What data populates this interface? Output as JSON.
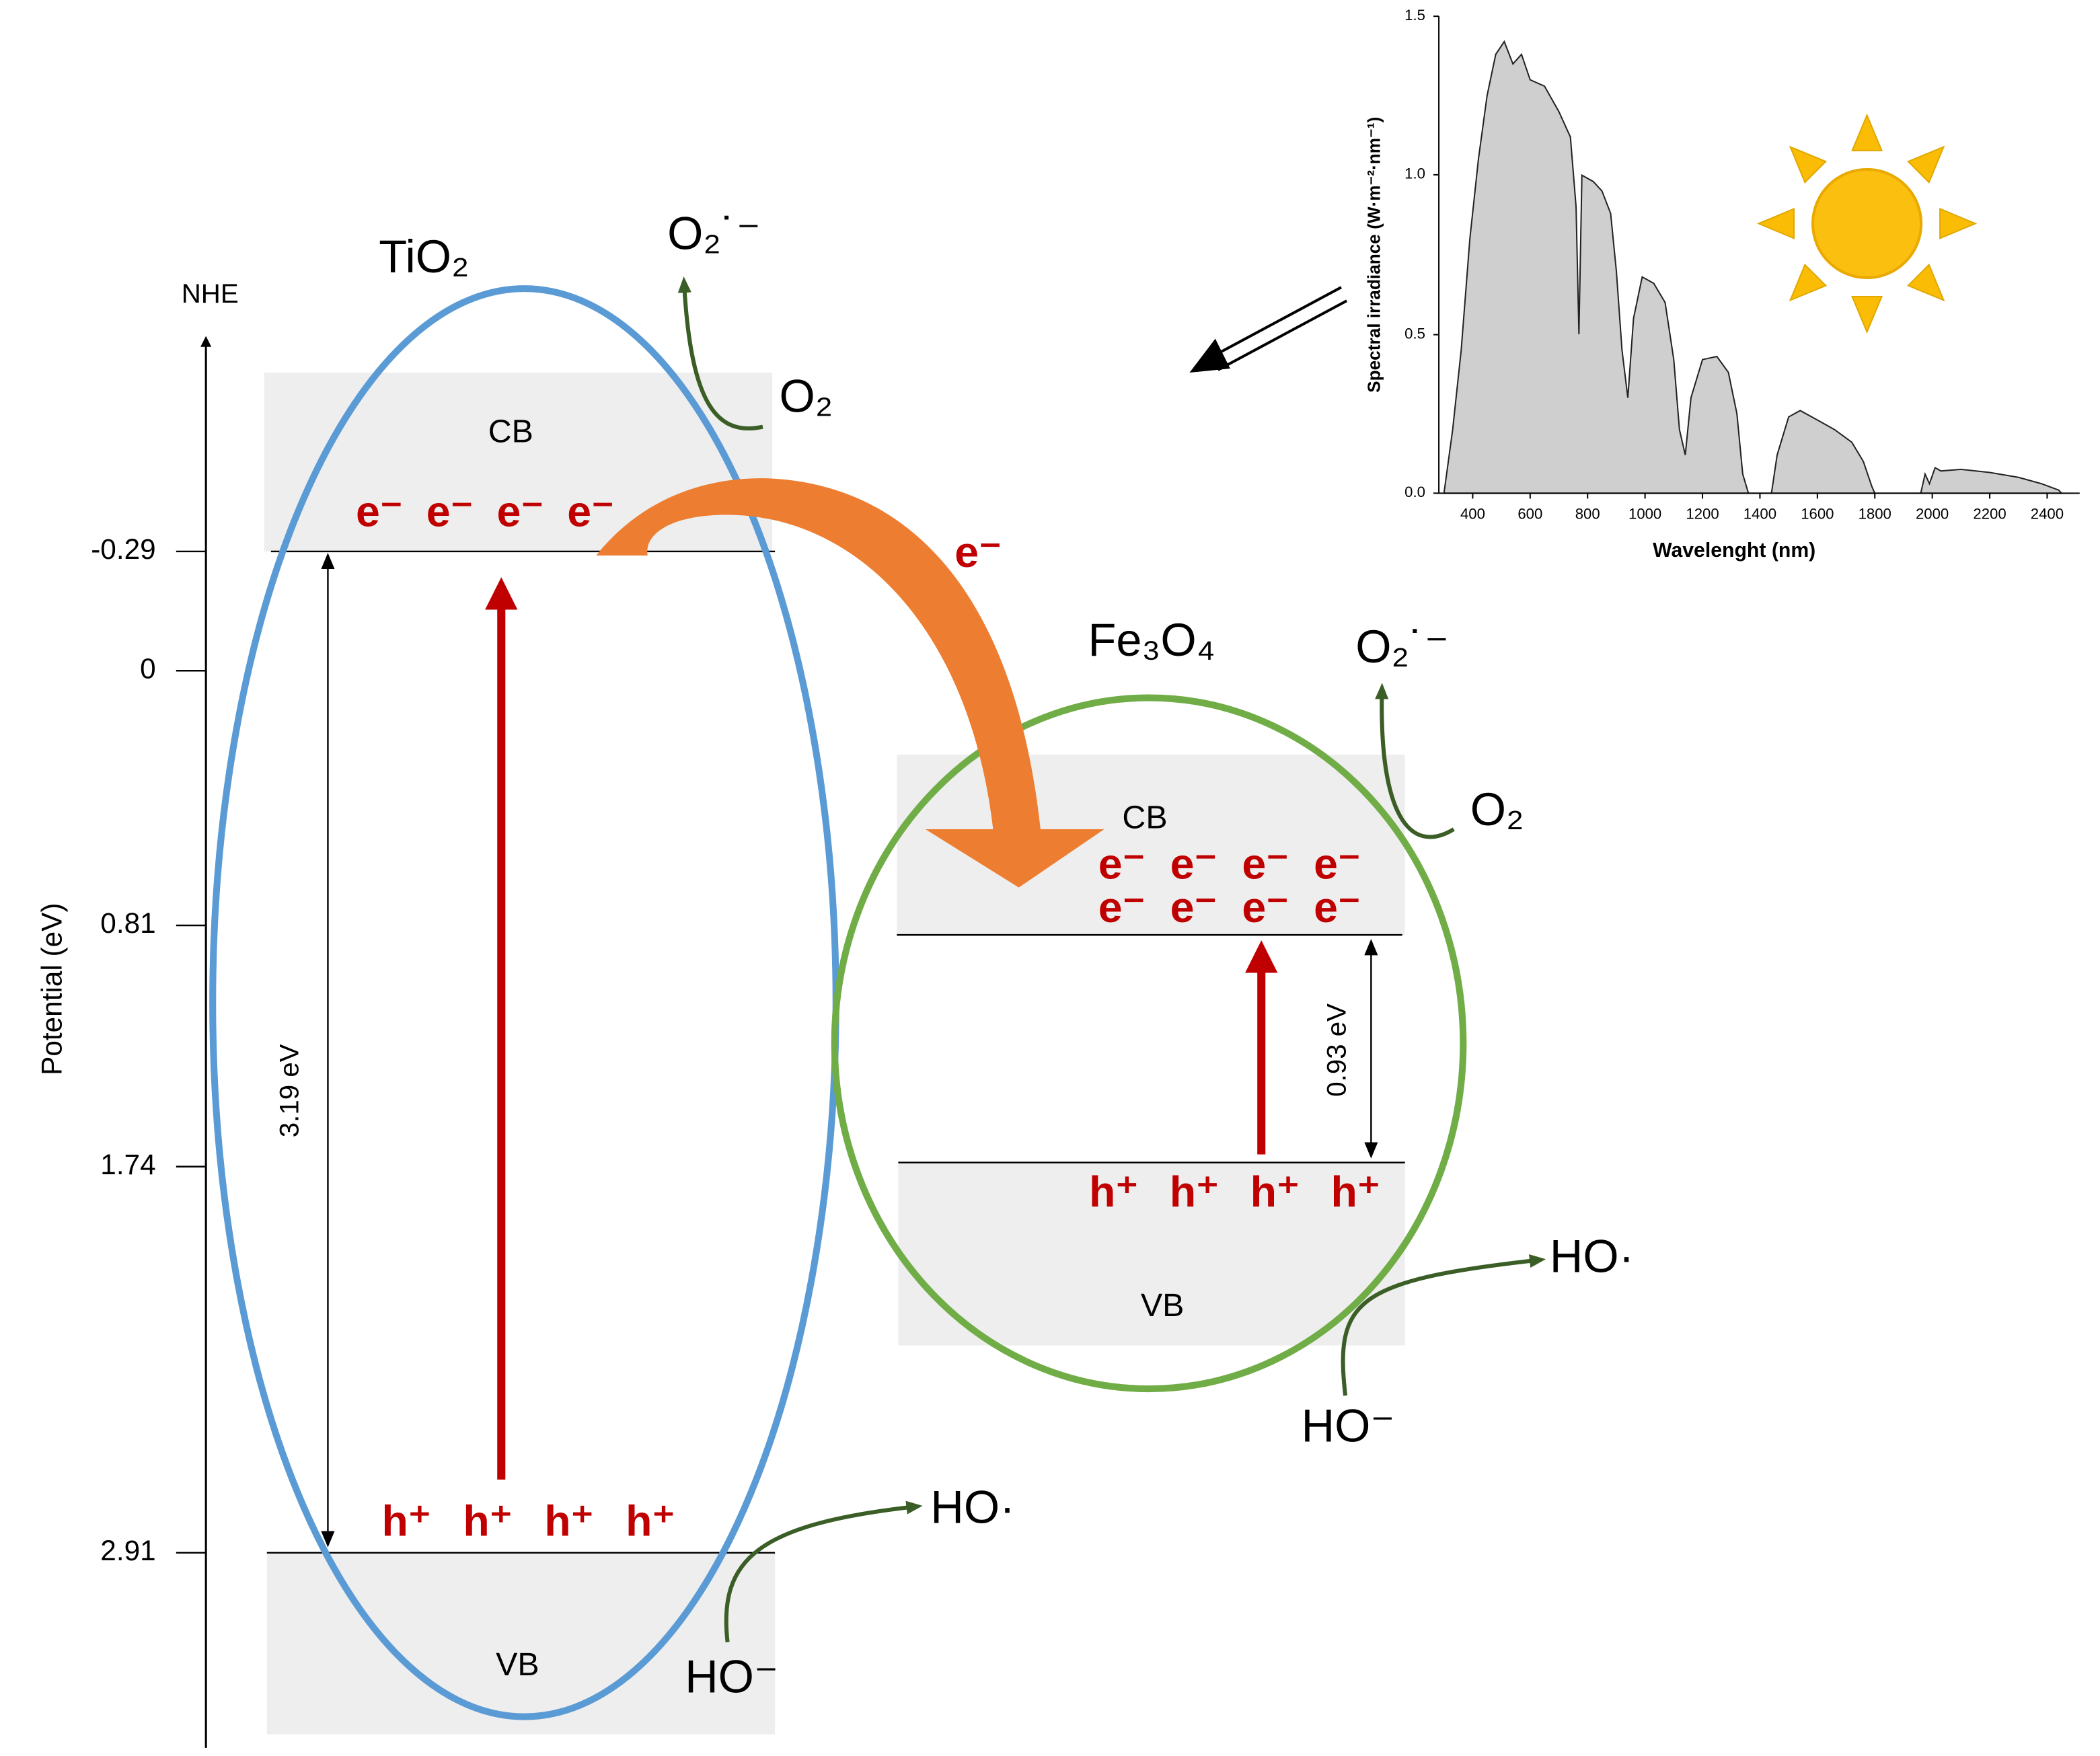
{
  "axis": {
    "reference": "NHE",
    "title": "Potential (eV)",
    "ticks": [
      "-0.29",
      "0",
      "0.81",
      "1.74",
      "2.91"
    ]
  },
  "tio2": {
    "label": "TiO₂",
    "cb": "CB",
    "vb": "VB",
    "electrons": [
      "e⁻",
      "e⁻",
      "e⁻",
      "e⁻"
    ],
    "holes": [
      "h⁺",
      "h⁺",
      "h⁺",
      "h⁺"
    ],
    "gap": "3.19 eV",
    "o2": "O₂",
    "superoxide": "O₂˙⁻",
    "hydroxide": "HO⁻",
    "hydroxyl": "HO·"
  },
  "transfer": "e⁻",
  "fe3o4": {
    "label": "Fe₃O₄",
    "cb": "CB",
    "vb": "VB",
    "electrons": [
      "e⁻",
      "e⁻",
      "e⁻",
      "e⁻",
      "e⁻",
      "e⁻",
      "e⁻",
      "e⁻"
    ],
    "holes": [
      "h⁺",
      "h⁺",
      "h⁺",
      "h⁺"
    ],
    "gap": "0.93 eV",
    "o2": "O₂",
    "superoxide": "O₂˙⁻",
    "hydroxide": "HO⁻",
    "hydroxyl": "HO·"
  },
  "spectrum": {
    "y_label": "Spectral irradiance (W·m⁻²·nm⁻¹)",
    "x_label": "Wavelenght (nm)",
    "yticks": [
      "0.0",
      "0.5",
      "1.0",
      "1.5"
    ],
    "xticks": [
      "400",
      "600",
      "800",
      "1000",
      "1200",
      "1400",
      "1600",
      "1800",
      "2000",
      "2200",
      "2400"
    ]
  }
}
